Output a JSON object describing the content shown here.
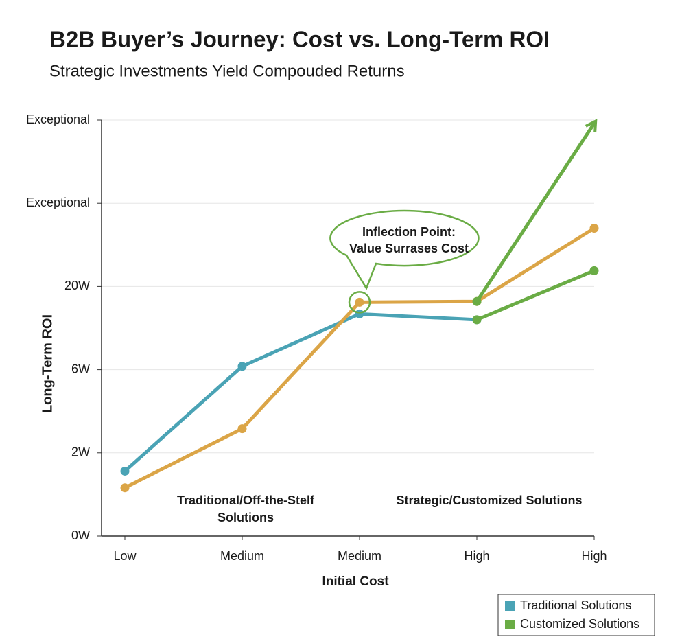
{
  "chart_data": {
    "type": "line",
    "title": "B2B Buyer’s Journey: Cost vs. Long-Term ROI",
    "subtitle": "Strategic Investments Yield Compouded Returns",
    "x_label": "Initial Cost",
    "y_label": "Long-Term ROI",
    "categories": [
      "Low",
      "Medium",
      "Medium",
      "High",
      "High"
    ],
    "ylim": [
      0,
      5
    ],
    "yticks": [
      {
        "value": 0,
        "label": "0W"
      },
      {
        "value": 1,
        "label": "2W"
      },
      {
        "value": 2,
        "label": "6W"
      },
      {
        "value": 3,
        "label": "20W"
      },
      {
        "value": 4,
        "label": "Exceptional"
      },
      {
        "value": 5,
        "label": "Exceptional"
      }
    ],
    "grid": true,
    "legend": "bottom-right",
    "series": [
      {
        "name": "Traditional Solutions",
        "color": "#4aa3b5",
        "values": [
          0.78,
          2.04,
          2.67,
          2.6,
          null
        ]
      },
      {
        "name": "Customized Solutions",
        "color": "#6aac45",
        "values": [
          null,
          null,
          null,
          2.6,
          3.19
        ]
      },
      {
        "color": "#dba547",
        "values": [
          0.58,
          1.29,
          2.81,
          2.82,
          3.7
        ]
      },
      {
        "color": "#6aac45",
        "arrow": true,
        "values": [
          null,
          null,
          null,
          2.82,
          4.96
        ]
      }
    ],
    "annotations": [
      {
        "lines": [
          "Inflection Point:",
          "Value Surrases Cost"
        ]
      },
      {
        "lines": [
          "Traditional/Off-the-Stelf",
          "Solutions"
        ]
      },
      {
        "lines": [
          "Strategic/Customized Solutions"
        ]
      }
    ]
  }
}
